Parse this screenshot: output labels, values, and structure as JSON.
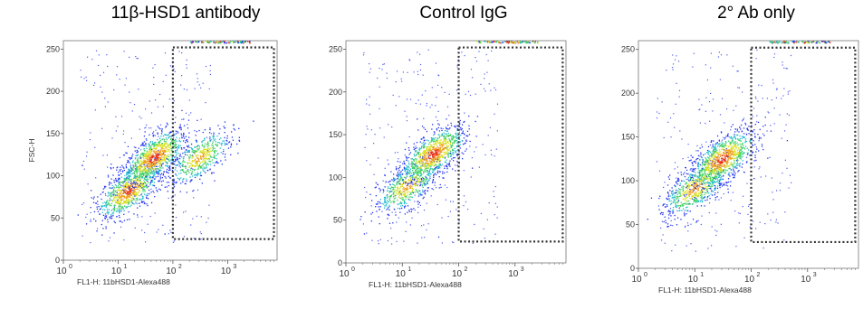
{
  "chart_data": [
    {
      "type": "scatter",
      "title": "11β-HSD1 antibody",
      "xlabel": "FL1-H: 11bHSD1-Alexa488",
      "ylabel": "FSC-H",
      "xscale": "log",
      "xlim": [
        1,
        8000
      ],
      "ylim": [
        0,
        260
      ],
      "x_ticks": [
        "10",
        "10",
        "10",
        "10"
      ],
      "x_tick_exponents": [
        "0",
        "1",
        "2",
        "3"
      ],
      "y_ticks": [
        "0",
        "50",
        "100",
        "150",
        "200",
        "250"
      ],
      "gate": {
        "x": [
          100,
          7000
        ],
        "y": [
          25,
          252
        ]
      },
      "populations": [
        {
          "x_center": 15,
          "y_center": 82,
          "weight": 0.9
        },
        {
          "x_center": 45,
          "y_center": 122,
          "weight": 1.0
        },
        {
          "x_center": 300,
          "y_center": 122,
          "weight": 0.55
        }
      ]
    },
    {
      "type": "scatter",
      "title": "Control IgG",
      "xlabel": "FL1-H: 11bHSD1-Alexa488",
      "ylabel": "",
      "xscale": "log",
      "xlim": [
        1,
        8000
      ],
      "ylim": [
        0,
        260
      ],
      "x_ticks": [
        "10",
        "10",
        "10",
        "10"
      ],
      "x_tick_exponents": [
        "0",
        "1",
        "2",
        "3"
      ],
      "y_ticks": [
        "0",
        "50",
        "100",
        "150",
        "200",
        "250"
      ],
      "gate": {
        "x": [
          100,
          7000
        ],
        "y": [
          25,
          252
        ]
      },
      "populations": [
        {
          "x_center": 12,
          "y_center": 90,
          "weight": 0.6
        },
        {
          "x_center": 35,
          "y_center": 128,
          "weight": 1.0
        }
      ]
    },
    {
      "type": "scatter",
      "title": "2° Ab only",
      "xlabel": "FL1-H: 11bHSD1-Alexa488",
      "ylabel": "",
      "xscale": "log",
      "xlim": [
        1,
        8000
      ],
      "ylim": [
        0,
        260
      ],
      "x_ticks": [
        "10",
        "10",
        "10",
        "10"
      ],
      "x_tick_exponents": [
        "0",
        "1",
        "2",
        "3"
      ],
      "y_ticks": [
        "0",
        "50",
        "100",
        "150",
        "200",
        "250"
      ],
      "gate": {
        "x": [
          100,
          7000
        ],
        "y": [
          30,
          252
        ]
      },
      "populations": [
        {
          "x_center": 10,
          "y_center": 92,
          "weight": 0.7
        },
        {
          "x_center": 30,
          "y_center": 125,
          "weight": 1.0
        }
      ]
    }
  ],
  "colors": {
    "density_low": "#2233ee",
    "density_mid": "#22bbcc",
    "density_high": "#ee3311",
    "gate": "#333333"
  }
}
